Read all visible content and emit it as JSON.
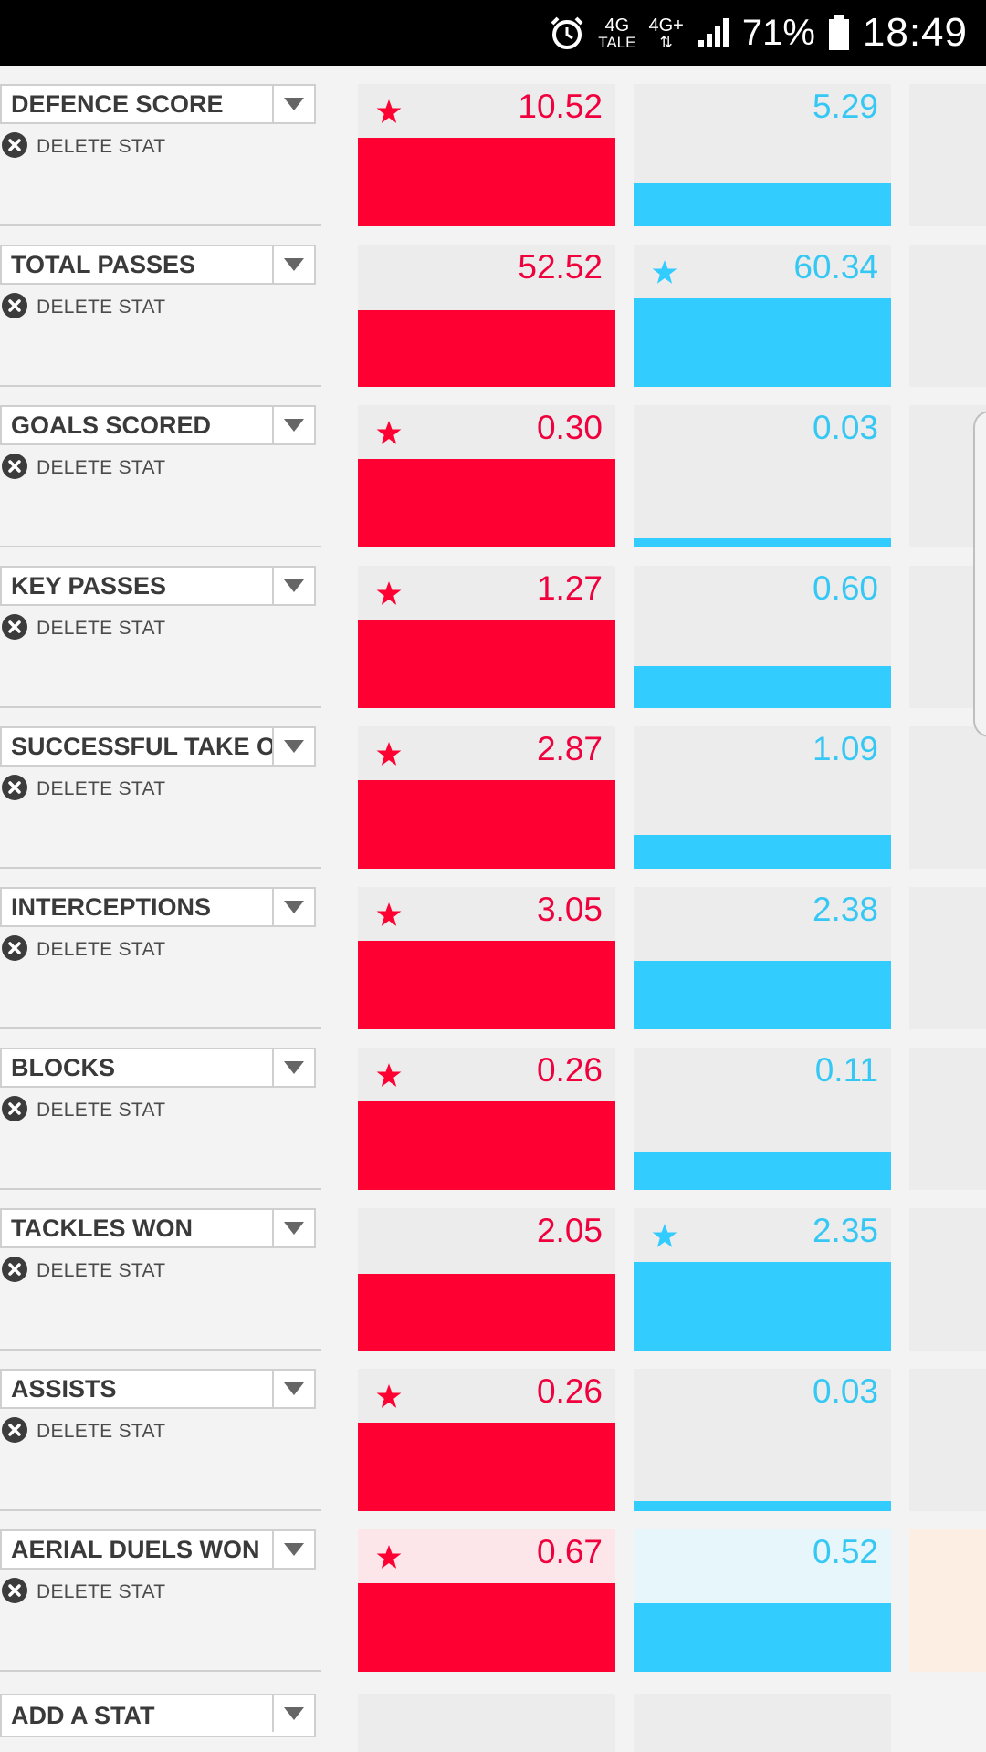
{
  "status_bar": {
    "network_top": "4G",
    "network_sub": "TALE",
    "network_2": "4G+",
    "battery": "71%",
    "time": "18:49",
    "icons": [
      "alarm-icon",
      "signal-icon",
      "battery-icon"
    ]
  },
  "colors": {
    "red": "#ff0033",
    "blue": "#33ccff",
    "red_text": "#f0003c",
    "blue_text": "#36c8f4"
  },
  "delete_label": "DELETE STAT",
  "add_stat_label": "ADD A STAT",
  "stats": [
    {
      "name": "DEFENCE SCORE",
      "red": "10.52",
      "blue": "5.29",
      "red_fill": 0.99,
      "blue_fill": 0.49,
      "leader": "red"
    },
    {
      "name": "TOTAL PASSES",
      "red": "52.52",
      "blue": "60.34",
      "red_fill": 0.86,
      "blue_fill": 0.99,
      "leader": "blue"
    },
    {
      "name": "GOALS SCORED",
      "red": "0.30",
      "blue": "0.03",
      "red_fill": 0.99,
      "blue_fill": 0.1,
      "leader": "red"
    },
    {
      "name": "KEY PASSES",
      "red": "1.27",
      "blue": "0.60",
      "red_fill": 0.99,
      "blue_fill": 0.47,
      "leader": "red"
    },
    {
      "name": "SUCCESSFUL TAKE O",
      "red": "2.87",
      "blue": "1.09",
      "red_fill": 0.99,
      "blue_fill": 0.38,
      "leader": "red"
    },
    {
      "name": "INTERCEPTIONS",
      "red": "3.05",
      "blue": "2.38",
      "red_fill": 0.99,
      "blue_fill": 0.77,
      "leader": "red"
    },
    {
      "name": "BLOCKS",
      "red": "0.26",
      "blue": "0.11",
      "red_fill": 0.99,
      "blue_fill": 0.42,
      "leader": "red"
    },
    {
      "name": "TACKLES WON",
      "red": "2.05",
      "blue": "2.35",
      "red_fill": 0.86,
      "blue_fill": 0.99,
      "leader": "blue"
    },
    {
      "name": "ASSISTS",
      "red": "0.26",
      "blue": "0.03",
      "red_fill": 0.99,
      "blue_fill": 0.11,
      "leader": "red"
    },
    {
      "name": "AERIAL DUELS WON",
      "red": "0.67",
      "blue": "0.52",
      "red_fill": 0.99,
      "blue_fill": 0.77,
      "leader": "red",
      "highlight": true
    }
  ]
}
